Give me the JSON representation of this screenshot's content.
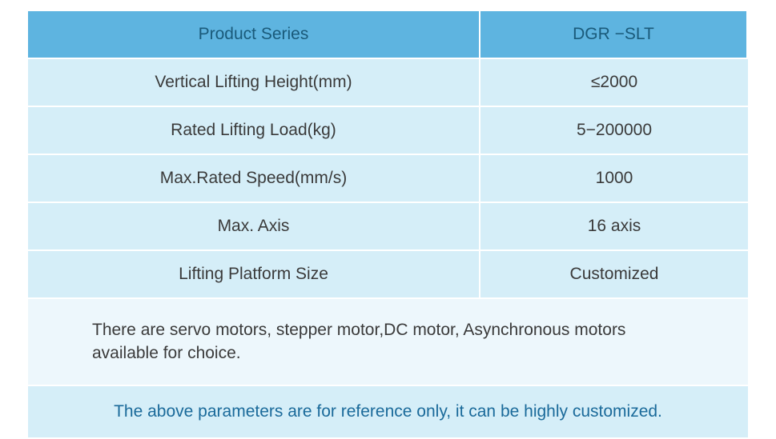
{
  "table": {
    "header": {
      "left": "Product Series",
      "right": "DGR −SLT"
    },
    "rows": [
      {
        "label": "Vertical Lifting Height(mm)",
        "value": "≤2000"
      },
      {
        "label": "Rated Lifting Load(kg)",
        "value": "5−200000"
      },
      {
        "label": "Max.Rated Speed(mm/s)",
        "value": "1000"
      },
      {
        "label": "Max. Axis",
        "value": "16 axis"
      },
      {
        "label": "Lifting Platform Size",
        "value": "Customized"
      }
    ],
    "note": "There are servo motors, stepper motor,DC motor, Asynchronous motors available for choice.",
    "footer": "The above parameters are for reference only, it can be highly customized."
  },
  "colors": {
    "header_bg": "#5eb4e0",
    "data_bg": "#d5eef8",
    "note_bg": "#edf7fc",
    "footer_bg": "#d5eef8",
    "text": "#3a3a3a",
    "header_text": "#1a5a7a",
    "footer_text": "#1a6a9a",
    "border": "#ffffff"
  },
  "layout": {
    "left_col_width": 565,
    "right_col_width": 334,
    "font_size": 21
  }
}
